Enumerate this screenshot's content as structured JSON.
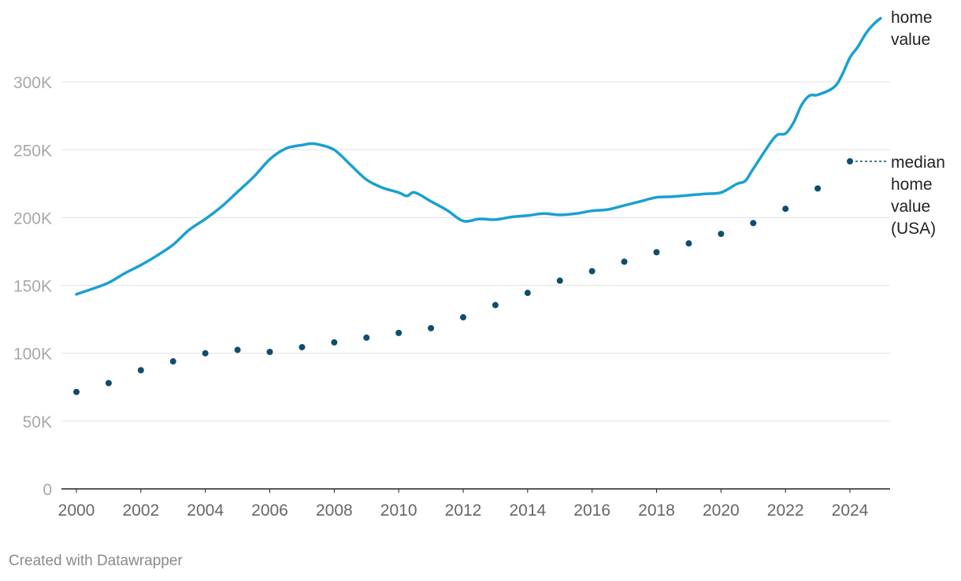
{
  "footer": {
    "credit": "Created with Datawrapper"
  },
  "colors": {
    "home_value": "#1aa0d2",
    "median_usa": "#0d4d6e",
    "axis": "#222222",
    "grid": "#e3e3e3"
  },
  "chart_data": {
    "type": "line",
    "title": "",
    "xlabel": "",
    "ylabel": "",
    "xlim": [
      2000,
      2025
    ],
    "ylim": [
      0,
      350000
    ],
    "grid": true,
    "legend": "direct labels at right",
    "y_ticks": [
      {
        "value": 0,
        "label": "0"
      },
      {
        "value": 50000,
        "label": "50K"
      },
      {
        "value": 100000,
        "label": "100K"
      },
      {
        "value": 150000,
        "label": "150K"
      },
      {
        "value": 200000,
        "label": "200K"
      },
      {
        "value": 250000,
        "label": "250K"
      },
      {
        "value": 300000,
        "label": "300K"
      }
    ],
    "x_ticks": [
      "2000",
      "2002",
      "2004",
      "2006",
      "2008",
      "2010",
      "2012",
      "2014",
      "2016",
      "2018",
      "2020",
      "2022",
      "2024"
    ],
    "series": [
      {
        "name": "home value",
        "label_lines": [
          "home",
          "value"
        ],
        "style": "line",
        "color": "#1aa0d2",
        "points": [
          [
            2000.0,
            143500
          ],
          [
            2000.5,
            147500
          ],
          [
            2001.0,
            152000
          ],
          [
            2001.5,
            159000
          ],
          [
            2002.0,
            165000
          ],
          [
            2002.5,
            172000
          ],
          [
            2003.0,
            180000
          ],
          [
            2003.5,
            191000
          ],
          [
            2004.0,
            199000
          ],
          [
            2004.5,
            208000
          ],
          [
            2005.0,
            219000
          ],
          [
            2005.5,
            230000
          ],
          [
            2006.0,
            243000
          ],
          [
            2006.5,
            251000
          ],
          [
            2007.0,
            253500
          ],
          [
            2007.25,
            254500
          ],
          [
            2007.5,
            254000
          ],
          [
            2008.0,
            250000
          ],
          [
            2008.5,
            239000
          ],
          [
            2009.0,
            228000
          ],
          [
            2009.5,
            222000
          ],
          [
            2010.0,
            218500
          ],
          [
            2010.25,
            216000
          ],
          [
            2010.5,
            218500
          ],
          [
            2011.0,
            212000
          ],
          [
            2011.5,
            205500
          ],
          [
            2012.0,
            197500
          ],
          [
            2012.5,
            199000
          ],
          [
            2013.0,
            198500
          ],
          [
            2013.5,
            200500
          ],
          [
            2014.0,
            201500
          ],
          [
            2014.5,
            203000
          ],
          [
            2015.0,
            202000
          ],
          [
            2015.5,
            203000
          ],
          [
            2016.0,
            205000
          ],
          [
            2016.5,
            206000
          ],
          [
            2017.0,
            209000
          ],
          [
            2017.5,
            212000
          ],
          [
            2018.0,
            215000
          ],
          [
            2018.5,
            215500
          ],
          [
            2019.0,
            216500
          ],
          [
            2019.5,
            217500
          ],
          [
            2020.0,
            218500
          ],
          [
            2020.5,
            225000
          ],
          [
            2020.75,
            227000
          ],
          [
            2021.0,
            236000
          ],
          [
            2021.5,
            254000
          ],
          [
            2021.75,
            261000
          ],
          [
            2022.0,
            262000
          ],
          [
            2022.25,
            270000
          ],
          [
            2022.5,
            283000
          ],
          [
            2022.75,
            290000
          ],
          [
            2023.0,
            290500
          ],
          [
            2023.5,
            296000
          ],
          [
            2023.75,
            305000
          ],
          [
            2024.0,
            318000
          ],
          [
            2024.25,
            326000
          ],
          [
            2024.5,
            336000
          ],
          [
            2024.75,
            343000
          ],
          [
            2024.95,
            347000
          ]
        ]
      },
      {
        "name": "median home value (USA)",
        "label_lines": [
          "median",
          "home",
          "value",
          "(USA)"
        ],
        "style": "dots",
        "color": "#0d4d6e",
        "points": [
          [
            2000,
            71500
          ],
          [
            2001,
            78000
          ],
          [
            2002,
            87500
          ],
          [
            2003,
            94000
          ],
          [
            2004,
            100000
          ],
          [
            2005,
            102500
          ],
          [
            2006,
            101000
          ],
          [
            2007,
            104500
          ],
          [
            2008,
            108000
          ],
          [
            2009,
            111500
          ],
          [
            2010,
            115000
          ],
          [
            2011,
            118500
          ],
          [
            2012,
            126500
          ],
          [
            2013,
            135500
          ],
          [
            2014,
            144500
          ],
          [
            2015,
            153500
          ],
          [
            2016,
            160500
          ],
          [
            2017,
            167500
          ],
          [
            2018,
            174500
          ],
          [
            2019,
            181000
          ],
          [
            2020,
            188000
          ],
          [
            2021,
            196000
          ],
          [
            2022,
            206500
          ],
          [
            2023,
            221500
          ],
          [
            2024,
            241500
          ]
        ]
      }
    ]
  }
}
